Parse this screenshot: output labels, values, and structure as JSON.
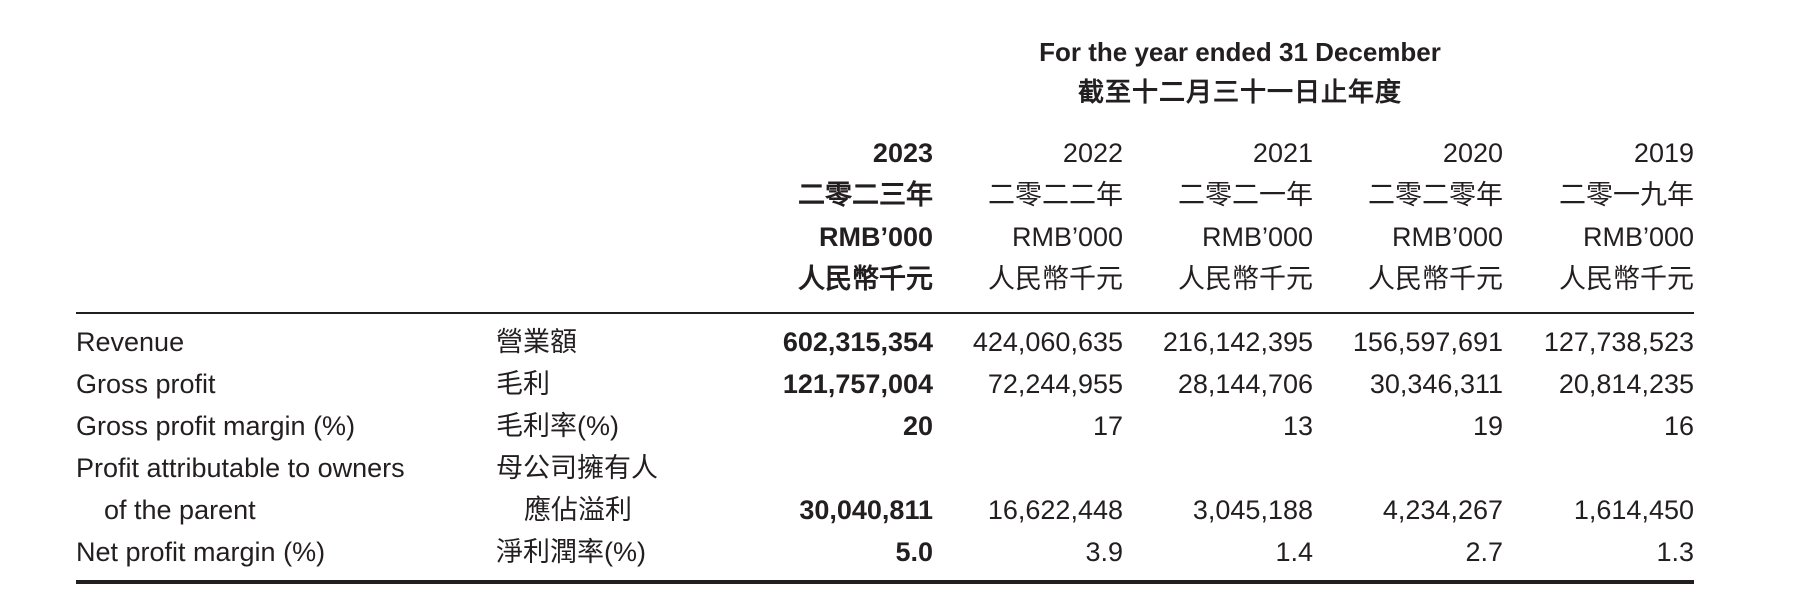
{
  "header": {
    "period_en": "For the year ended 31 December",
    "period_zh": "截至十二月三十一日止年度"
  },
  "columns": [
    {
      "year": "2023",
      "year_zh": "二零二三年",
      "unit_en": "RMB’000",
      "unit_zh": "人民幣千元",
      "highlight": true
    },
    {
      "year": "2022",
      "year_zh": "二零二二年",
      "unit_en": "RMB’000",
      "unit_zh": "人民幣千元",
      "highlight": false
    },
    {
      "year": "2021",
      "year_zh": "二零二一年",
      "unit_en": "RMB’000",
      "unit_zh": "人民幣千元",
      "highlight": false
    },
    {
      "year": "2020",
      "year_zh": "二零二零年",
      "unit_en": "RMB’000",
      "unit_zh": "人民幣千元",
      "highlight": false
    },
    {
      "year": "2019",
      "year_zh": "二零一九年",
      "unit_en": "RMB’000",
      "unit_zh": "人民幣千元",
      "highlight": false
    }
  ],
  "rows": [
    {
      "label_en": "Revenue",
      "label_zh": "營業額",
      "values": [
        "602,315,354",
        "424,060,635",
        "216,142,395",
        "156,597,691",
        "127,738,523"
      ]
    },
    {
      "label_en": "Gross profit",
      "label_zh": "毛利",
      "values": [
        "121,757,004",
        "72,244,955",
        "28,144,706",
        "30,346,311",
        "20,814,235"
      ]
    },
    {
      "label_en": "Gross profit margin (%)",
      "label_zh": "毛利率(%)",
      "values": [
        "20",
        "17",
        "13",
        "19",
        "16"
      ]
    },
    {
      "label_en": "Profit attributable to owners",
      "label_en_2": "of the parent",
      "label_zh": "母公司擁有人",
      "label_zh_2": "應佔溢利",
      "values": [
        "30,040,811",
        "16,622,448",
        "3,045,188",
        "4,234,267",
        "1,614,450"
      ]
    },
    {
      "label_en": "Net profit margin (%)",
      "label_zh": "淨利潤率(%)",
      "values": [
        "5.0",
        "3.9",
        "1.4",
        "2.7",
        "1.3"
      ]
    }
  ]
}
